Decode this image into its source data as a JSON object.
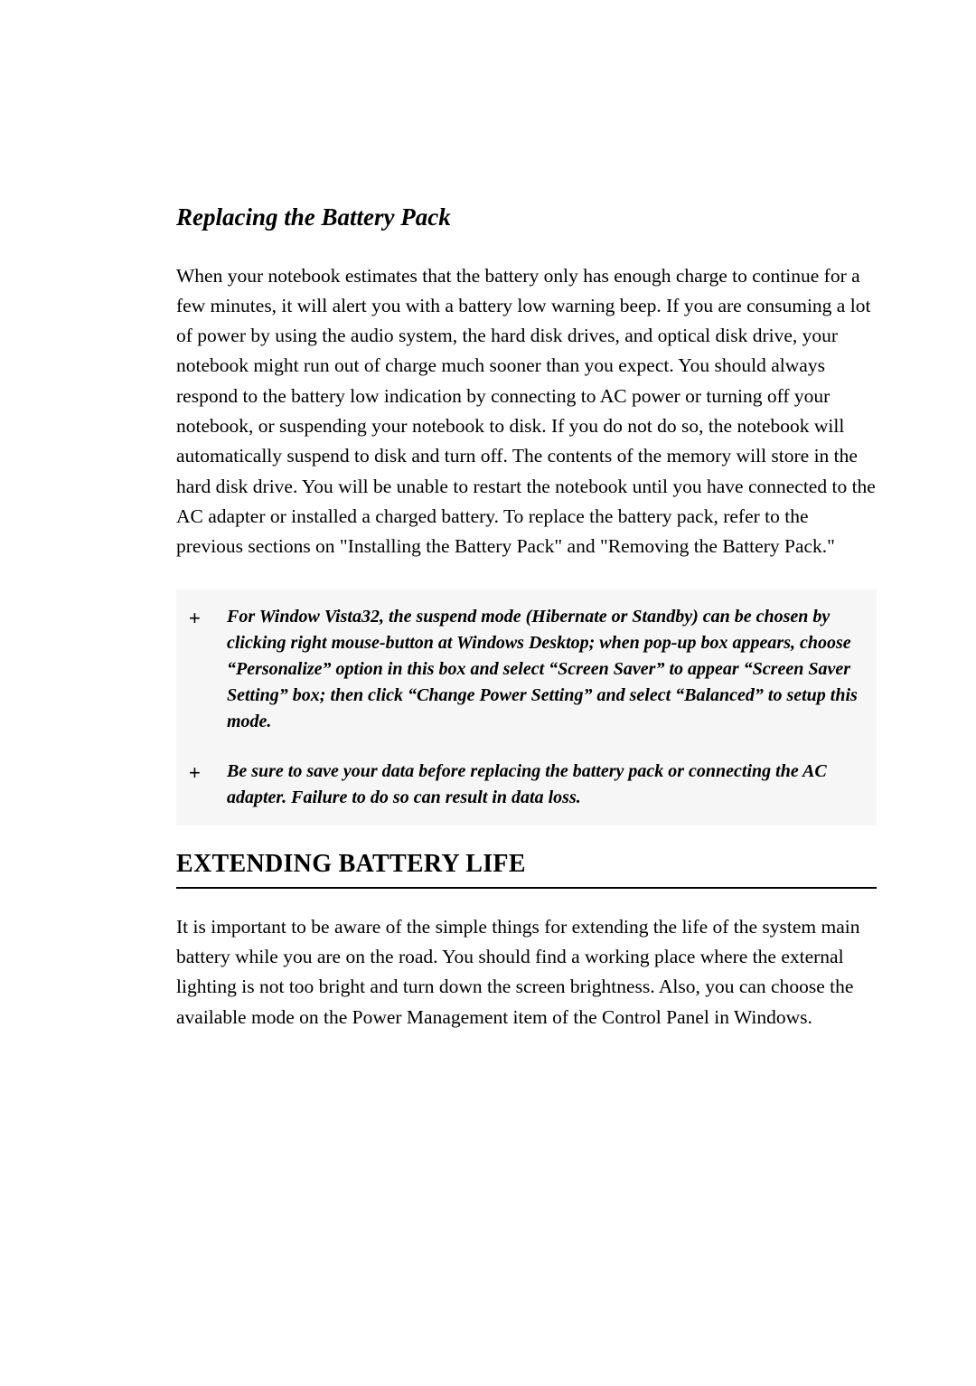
{
  "doc": {
    "section_title": "Replacing the Battery Pack",
    "paragraph_1": "When your notebook estimates that the battery only has enough charge to continue for a few minutes, it will alert you with a battery low warning beep. If you are consuming a lot of power by using the audio system, the hard disk drives, and optical disk drive, your notebook might run out of charge much sooner than you expect. You should always respond to the battery low indication by connecting to AC power or turning off your notebook, or suspending your notebook to disk. If you do not do so, the notebook will automatically suspend to disk and turn off. The contents of the memory will store in the hard disk drive. You will be unable to restart the notebook until you have connected to the AC adapter or installed a charged battery. To replace the battery pack, refer to the previous sections on \"Installing the Battery Pack\" and \"Removing the Battery Pack.\"",
    "notes": [
      {
        "bullet": "+",
        "text": "For Window Vista32, the suspend mode (Hibernate or Standby) can be chosen by clicking right mouse-button at Windows Desktop; when pop-up box appears, choose “Personalize” option in this box and select “Screen Saver” to appear “Screen Saver Setting” box; then click “Change Power Setting” and select “Balanced” to setup this mode."
      },
      {
        "bullet": "+",
        "text": "Be sure to save your data before replacing the battery pack or connecting the AC adapter. Failure to do so can result in data loss."
      }
    ],
    "major_heading": "EXTENDING BATTERY LIFE",
    "paragraph_2": "It is important to be aware of the simple things for extending the life of the system main battery while you are on the road. You should find a working place where the external lighting is not too bright and turn down the screen brightness. Also, you can choose the available mode on the Power Management item of the Control Panel in Windows.",
    "colors": {
      "page_bg": "#ffffff",
      "text": "#000000",
      "note_bg": "#f6f6f6",
      "rule": "#000000"
    },
    "typography": {
      "body_font": "Garamond / Times",
      "body_size_pt": 12,
      "section_title_size_pt": 15,
      "major_heading_size_pt": 16,
      "note_size_pt": 11
    }
  }
}
